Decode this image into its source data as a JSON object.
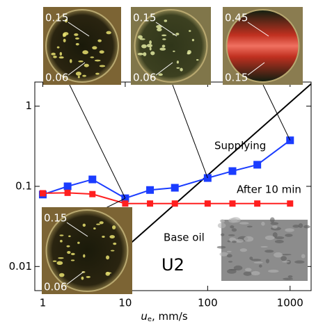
{
  "chart_data": {
    "type": "line",
    "x_label": {
      "symbol": "u",
      "subscript": "e",
      "unit": ", mm/s"
    },
    "log_x": true,
    "log_y": true,
    "xlim": [
      0.8,
      1800
    ],
    "ylim": [
      0.005,
      2
    ],
    "xticks": [
      1,
      10,
      100,
      1000
    ],
    "yticks": [
      0.01,
      0.1,
      1
    ],
    "x": [
      1,
      2,
      4,
      10,
      20,
      40,
      100,
      200,
      400,
      1000
    ],
    "series": [
      {
        "name": "Supplying",
        "color": "#1a3cff",
        "values": [
          0.079,
          0.1,
          0.122,
          0.071,
          0.09,
          0.096,
          0.127,
          0.155,
          0.186,
          0.375
        ]
      },
      {
        "name": "After 10 min",
        "color": "#ff1f1f",
        "values": [
          0.082,
          0.083,
          0.08,
          0.061,
          0.061,
          0.061,
          0.061,
          0.061,
          0.061,
          0.061
        ]
      }
    ],
    "reference_line": {
      "name": "Base oil",
      "x": [
        10,
        1800
      ],
      "values": [
        0.017,
        1.9
      ],
      "color": "#000000"
    },
    "label": "U2"
  },
  "insets": [
    {
      "labels": [
        "0.15",
        "0.06"
      ]
    },
    {
      "labels": [
        "0.15",
        "0.06"
      ]
    },
    {
      "labels": [
        "0.45",
        "0.15"
      ]
    },
    {
      "labels": [
        "0.15",
        "0.06"
      ]
    }
  ]
}
